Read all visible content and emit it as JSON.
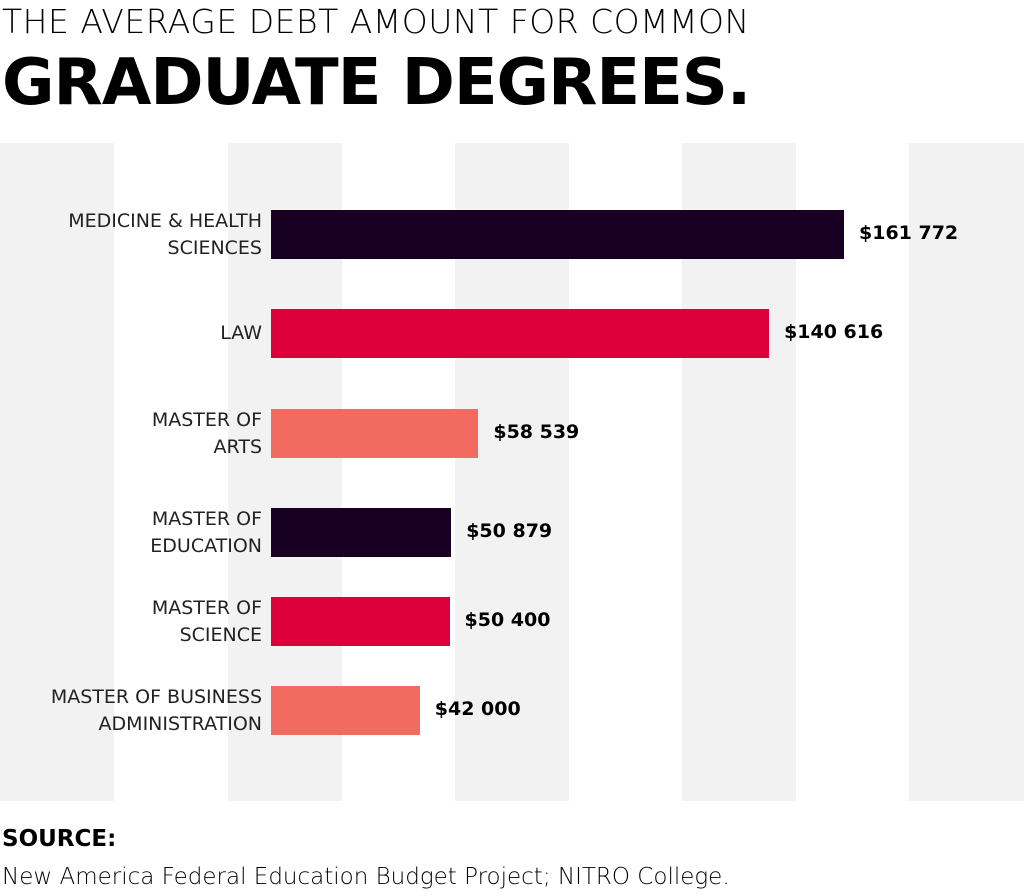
{
  "title_line1": "THE AVERAGE DEBT AMOUNT FOR COMMON",
  "title_line2": "GRADUATE DEGREES.",
  "source_label": "SOURCE:",
  "source_text": "New America Federal Education Budget Project; NITRO College.",
  "chart_data": {
    "type": "bar",
    "orientation": "horizontal",
    "title": "THE AVERAGE DEBT AMOUNT FOR COMMON GRADUATE DEGREES.",
    "categories": [
      "MEDICINE & HEALTH\nSCIENCES",
      "LAW",
      "MASTER OF\nARTS",
      "MASTER OF\nEDUCATION",
      "MASTER OF\nSCIENCE",
      "MASTER OF BUSINESS\nADMINISTRATION"
    ],
    "values": [
      161772,
      140616,
      58539,
      50879,
      50400,
      42000
    ],
    "data_labels": [
      "$161 772",
      "$140 616",
      "$58 539",
      "$50 879",
      "$50 400",
      "$42 000"
    ],
    "colors": [
      "#170021",
      "#dc003a",
      "#f26b61",
      "#170021",
      "#dc003a",
      "#f26b61"
    ],
    "xlabel": "",
    "ylabel": "",
    "grid": false,
    "background_stripes": true
  }
}
